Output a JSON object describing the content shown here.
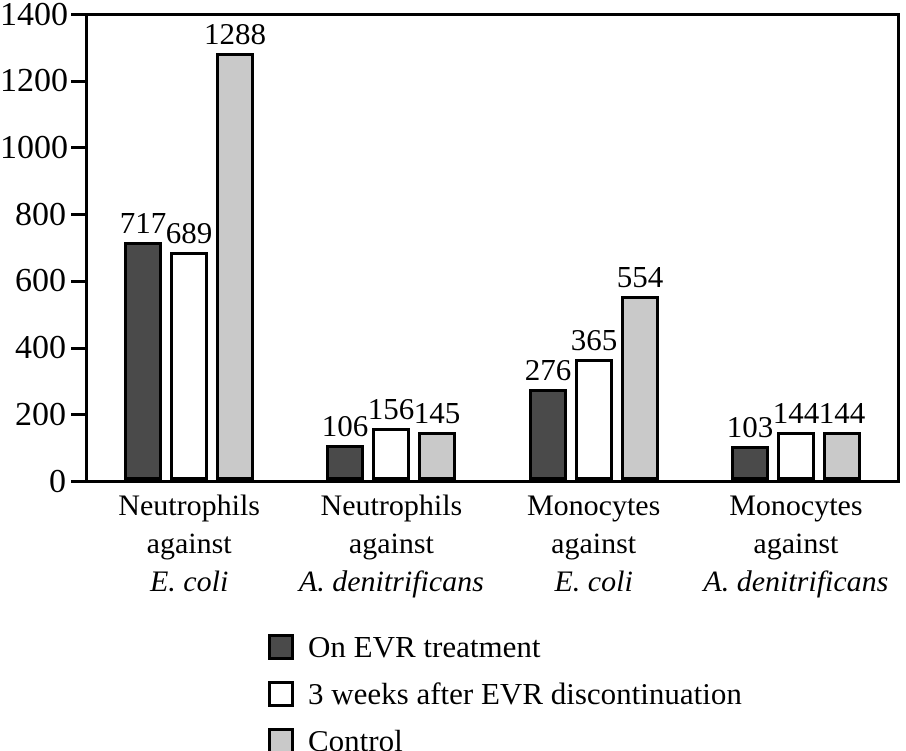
{
  "chart_data": {
    "type": "bar",
    "title": "",
    "xlabel": "",
    "ylabel": "",
    "ylim": [
      0,
      1400
    ],
    "yticks": [
      0,
      200,
      400,
      600,
      800,
      1000,
      1200,
      1400
    ],
    "grid": false,
    "bar_value_labels": true,
    "legend_position": "bottom-left",
    "axis_color": "#000000",
    "categories": [
      {
        "line1": "Neutrophils",
        "line2": "against",
        "line3": "E. coli"
      },
      {
        "line1": "Neutrophils",
        "line2": "against",
        "line3": "A. denitrificans"
      },
      {
        "line1": "Monocytes",
        "line2": "against",
        "line3": "E. coli"
      },
      {
        "line1": "Monocytes",
        "line2": "against",
        "line3": "A. denitrificans"
      }
    ],
    "series": [
      {
        "name": "On EVR treatment",
        "color": "#4a4a4a",
        "values": [
          717,
          106,
          276,
          103
        ]
      },
      {
        "name": "3 weeks after EVR discontinuation",
        "color": "#ffffff",
        "values": [
          689,
          156,
          365,
          144
        ]
      },
      {
        "name": "Control",
        "color": "#c9c9c9",
        "values": [
          1288,
          145,
          554,
          144
        ]
      }
    ]
  }
}
